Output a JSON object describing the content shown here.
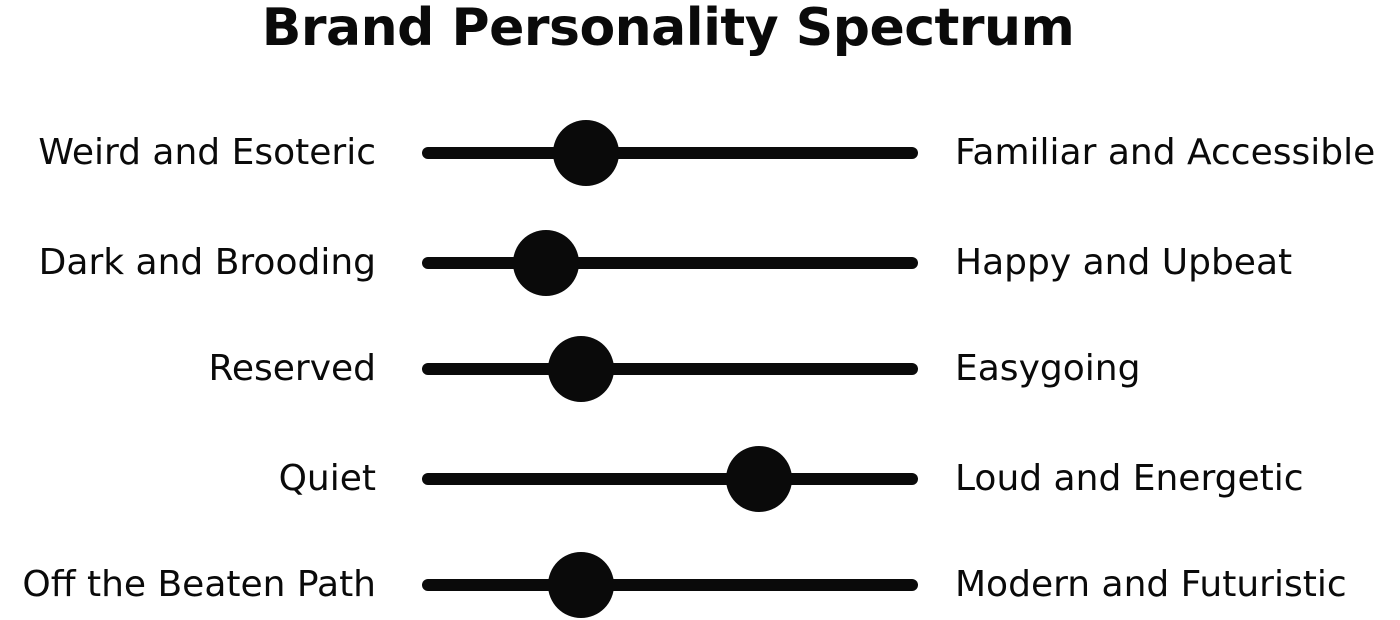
{
  "title": "Brand Personality Spectrum",
  "colors": {
    "ink": "#0a0a0a",
    "background": "#ffffff"
  },
  "sliders": [
    {
      "left_label": "Weird and Esoteric",
      "right_label": "Familiar and Accessible",
      "position": 0.33
    },
    {
      "left_label": "Dark and Brooding",
      "right_label": "Happy and Upbeat",
      "position": 0.25
    },
    {
      "left_label": "Reserved",
      "right_label": "Easygoing",
      "position": 0.32
    },
    {
      "left_label": "Quiet",
      "right_label": "Loud and Energetic",
      "position": 0.68
    },
    {
      "left_label": "Off the Beaten Path",
      "right_label": "Modern and Futuristic",
      "position": 0.32
    }
  ]
}
